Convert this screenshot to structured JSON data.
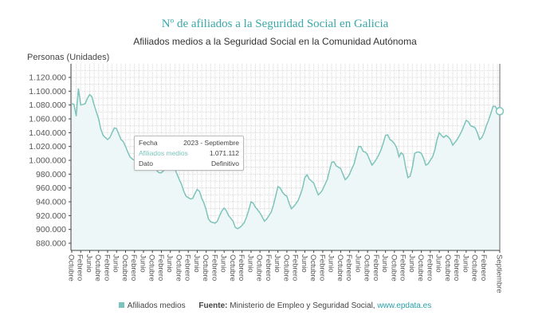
{
  "chart_data": {
    "type": "area",
    "title": "Nº de afiliados a la Seguridad Social en Galicia",
    "subtitle": "Afiliados medios a la Seguridad Social en la Comunidad Autónoma",
    "ylabel": "Personas (Unidades)",
    "ylim": [
      870000,
      1130000
    ],
    "y_ticks": [
      "1.120.000",
      "1.100.000",
      "1.080.000",
      "1.060.000",
      "1.040.000",
      "1.020.000",
      "1.000.000",
      "980.000",
      "960.000",
      "940.000",
      "920.000",
      "900.000",
      "880.000"
    ],
    "y_tick_values": [
      1120000,
      1100000,
      1080000,
      1060000,
      1040000,
      1020000,
      1000000,
      980000,
      960000,
      940000,
      920000,
      900000,
      880000
    ],
    "x_tick_labels": [
      "Octubre",
      "Febrero",
      "Junio",
      "Octubre",
      "Febrero",
      "Junio",
      "Octubre",
      "Febrero",
      "Junio",
      "Octubre",
      "Febrero",
      "Junio",
      "Octubre",
      "Febrero",
      "Junio",
      "Octubre",
      "Febrero",
      "Junio",
      "Octubre",
      "Febrero",
      "Junio",
      "Octubre",
      "Febrero",
      "Junio",
      "Octubre",
      "Febrero",
      "Junio",
      "Octubre",
      "Febrero",
      "Junio",
      "Octubre",
      "Febrero",
      "Junio",
      "Octubre",
      "Febrero",
      "Junio",
      "Octubre",
      "Febrero",
      "Junio",
      "Octubre",
      "Febrero",
      "Junio",
      "Octubre",
      "Febrero",
      "Junio",
      "Octubre",
      "Febrero",
      "Septiembre"
    ],
    "x_range": [
      "2007-10",
      "2023-09"
    ],
    "grid": true,
    "legend": "bottom",
    "series": [
      {
        "name": "Afiliados medios",
        "color": "#7cc4bb",
        "values": [
          1082000,
          1081000,
          1064000,
          1104000,
          1080000,
          1081000,
          1082000,
          1090000,
          1095000,
          1092000,
          1080000,
          1070000,
          1060000,
          1045000,
          1036000,
          1033000,
          1030000,
          1033000,
          1040000,
          1047000,
          1046000,
          1038000,
          1030000,
          1027000,
          1020000,
          1012000,
          1005000,
          1002000,
          1000000,
          1000000,
          1005000,
          1010000,
          1012000,
          1010000,
          1003000,
          998000,
          994000,
          990000,
          985000,
          982000,
          982000,
          985000,
          990000,
          995000,
          997000,
          995000,
          988000,
          980000,
          972000,
          965000,
          955000,
          948000,
          946000,
          944000,
          945000,
          952000,
          958000,
          955000,
          945000,
          938000,
          928000,
          915000,
          911000,
          910000,
          909000,
          912000,
          920000,
          927000,
          931000,
          927000,
          920000,
          916000,
          912000,
          903000,
          901000,
          903000,
          906000,
          910000,
          918000,
          928000,
          940000,
          938000,
          932000,
          928000,
          924000,
          918000,
          912000,
          915000,
          920000,
          925000,
          935000,
          948000,
          962000,
          960000,
          954000,
          950000,
          948000,
          938000,
          930000,
          933000,
          937000,
          942000,
          950000,
          960000,
          975000,
          979000,
          973000,
          970000,
          967000,
          958000,
          950000,
          953000,
          958000,
          965000,
          972000,
          985000,
          997000,
          998000,
          992000,
          990000,
          988000,
          980000,
          972000,
          975000,
          980000,
          988000,
          995000,
          1008000,
          1020000,
          1020000,
          1013000,
          1012000,
          1008000,
          1000000,
          993000,
          997000,
          1002000,
          1008000,
          1015000,
          1025000,
          1036000,
          1037000,
          1030000,
          1028000,
          1024000,
          1018000,
          1005000,
          1011000,
          1008000,
          990000,
          975000,
          977000,
          990000,
          1010000,
          1012000,
          1012000,
          1010000,
          1003000,
          993000,
          995000,
          1000000,
          1005000,
          1015000,
          1030000,
          1040000,
          1036000,
          1033000,
          1036000,
          1034000,
          1030000,
          1022000,
          1026000,
          1030000,
          1036000,
          1042000,
          1050000,
          1058000,
          1056000,
          1050000,
          1049000,
          1047000,
          1040000,
          1030000,
          1033000,
          1040000,
          1050000,
          1058000,
          1068000,
          1078000,
          1078000,
          1072000,
          1071112
        ]
      }
    ]
  },
  "tooltip": {
    "fecha_label": "Fecha",
    "fecha_value": "2023 - Septiembre",
    "series_label": "Afiliados medios",
    "series_value": "1.071.112",
    "dato_label": "Dato",
    "dato_value": "Definitivo"
  },
  "legend": {
    "series_label": "Afiliados medios",
    "source_label": "Fuente:",
    "source_text": "Ministerio de Empleo y Seguridad Social,",
    "source_link": "www.epdata.es"
  }
}
